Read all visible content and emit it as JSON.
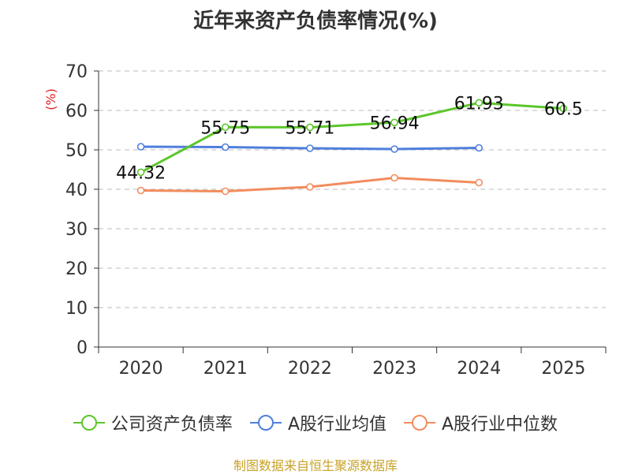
{
  "title": "近年来资产负债率情况(%)",
  "source_note": "制图数据来自恒生聚源数据库",
  "chart_data": {
    "type": "line",
    "title": "近年来资产负债率情况(%)",
    "xlabel": "",
    "ylabel": "(%)",
    "ylim": [
      0,
      70
    ],
    "yticks": [
      0,
      10,
      20,
      30,
      40,
      50,
      60,
      70
    ],
    "categories": [
      "2020",
      "2021",
      "2022",
      "2023",
      "2024",
      "2025"
    ],
    "grid": true,
    "legend_position": "bottom",
    "series": [
      {
        "name": "公司资产负债率",
        "color": "#5cc62b",
        "values": [
          44.32,
          55.75,
          55.71,
          56.94,
          61.93,
          60.5
        ],
        "labels": [
          "44.32",
          "55.75",
          "55.71",
          "56.94",
          "61.93",
          "60.5"
        ]
      },
      {
        "name": "A股行业均值",
        "color": "#4f7fdc",
        "values": [
          50.8,
          50.7,
          50.4,
          50.2,
          50.5,
          null
        ]
      },
      {
        "name": "A股行业中位数",
        "color": "#f28c5e",
        "values": [
          39.7,
          39.5,
          40.6,
          42.9,
          41.7,
          null
        ]
      }
    ]
  }
}
